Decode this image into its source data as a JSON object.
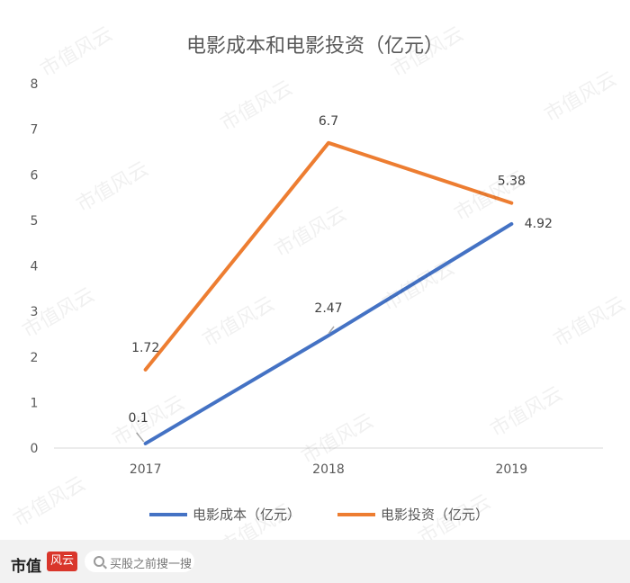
{
  "chart_data": {
    "type": "line",
    "title": "电影成本和电影投资（亿元）",
    "categories": [
      "2017",
      "2018",
      "2019"
    ],
    "series": [
      {
        "name": "电影成本（亿元）",
        "values": [
          0.1,
          2.47,
          4.92
        ],
        "color": "#4472c4"
      },
      {
        "name": "电影投资（亿元）",
        "values": [
          1.72,
          6.7,
          5.38
        ],
        "color": "#ed7d31"
      }
    ],
    "ylim": [
      0,
      8
    ],
    "yticks": [
      "0",
      "1",
      "2",
      "3",
      "4",
      "5",
      "6",
      "7",
      "8"
    ],
    "data_labels": {
      "series0": [
        "0.1",
        "2.47",
        "4.92"
      ],
      "series1": [
        "1.72",
        "6.7",
        "5.38"
      ]
    },
    "grid": false,
    "legend": "bottom"
  },
  "watermark": "市值风云",
  "footer": {
    "brand": "市值",
    "brand_seal": "风云",
    "search_placeholder": "买股之前搜一搜",
    "search_icon": "search-icon"
  }
}
